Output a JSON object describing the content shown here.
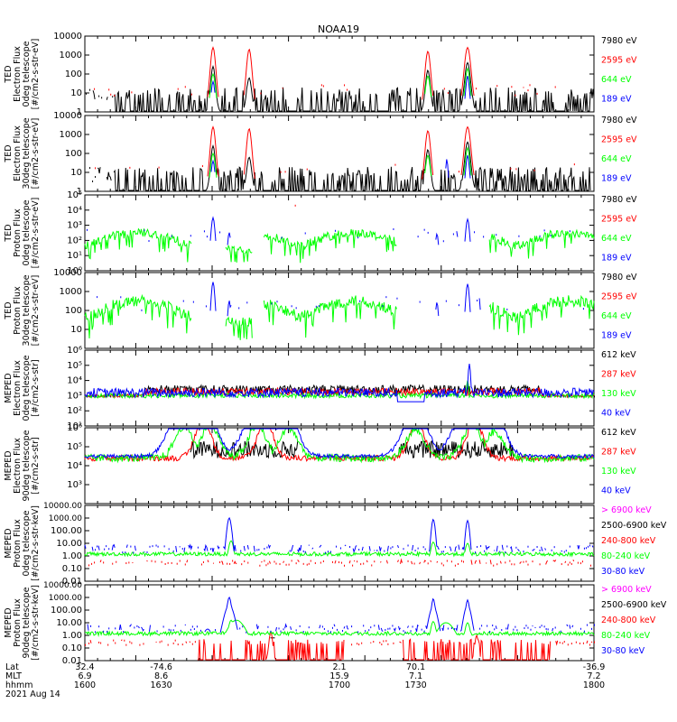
{
  "title": "NOAA19",
  "colors": {
    "black": "#000000",
    "red": "#ff0000",
    "green": "#00ff00",
    "blue": "#0000ff",
    "magenta": "#ff00ff"
  },
  "bottom_axis": {
    "row_labels": [
      "Lat",
      "MLT",
      "hhmm"
    ],
    "columns": [
      {
        "t": 1600,
        "values": [
          "32.4",
          "6.9",
          "1600"
        ]
      },
      {
        "t": 1630,
        "values": [
          "-74.6",
          "8.6",
          "1630"
        ]
      },
      {
        "t": 1700,
        "values": [
          "2.1",
          "15.9",
          "1700"
        ]
      },
      {
        "t": 1730,
        "values": [
          "70.1",
          "7.1",
          "1730"
        ]
      },
      {
        "t": 1800,
        "values": [
          "-36.9",
          "7.2",
          "1800"
        ]
      }
    ],
    "date": "2021 Aug 14"
  },
  "chart_data": [
    {
      "type": "line",
      "ylabel": [
        "TED",
        "Electron Flux",
        "0deg telescope",
        "[#/cm2-s-str-eV]"
      ],
      "ylog": true,
      "ylim": [
        1,
        10000
      ],
      "yticks": [
        1,
        10,
        100,
        1000,
        10000
      ],
      "ytick_labels": [
        "1",
        "10",
        "100",
        "1000",
        "10000"
      ],
      "legend": [
        {
          "label": "7980 eV",
          "color": "black"
        },
        {
          "label": "2595 eV",
          "color": "red"
        },
        {
          "label": "644 eV",
          "color": "green"
        },
        {
          "label": "189 eV",
          "color": "blue"
        }
      ]
    },
    {
      "type": "line",
      "ylabel": [
        "TED",
        "Electron Flux",
        "30deg telescope",
        "[#/cm2-s-str-eV]"
      ],
      "ylog": true,
      "ylim": [
        1,
        10000
      ],
      "yticks": [
        1,
        10,
        100,
        1000,
        10000
      ],
      "ytick_labels": [
        "1",
        "10",
        "100",
        "1000",
        "10000"
      ],
      "legend": [
        {
          "label": "7980 eV",
          "color": "black"
        },
        {
          "label": "2595 eV",
          "color": "red"
        },
        {
          "label": "644 eV",
          "color": "green"
        },
        {
          "label": "189 eV",
          "color": "blue"
        }
      ]
    },
    {
      "type": "line",
      "ylabel": [
        "TED",
        "Proton Flux",
        "0deg telescope",
        "[#/cm2-s-str-eV]"
      ],
      "ylog": true,
      "ylim": [
        1,
        100000
      ],
      "yticks": [
        1,
        10,
        100,
        1000,
        10000,
        100000
      ],
      "ytick_labels": [
        "10⁰",
        "10¹",
        "10²",
        "10³",
        "10⁴",
        "10⁵"
      ],
      "legend": [
        {
          "label": "7980 eV",
          "color": "black"
        },
        {
          "label": "2595 eV",
          "color": "red"
        },
        {
          "label": "644 eV",
          "color": "green"
        },
        {
          "label": "189 eV",
          "color": "blue"
        }
      ]
    },
    {
      "type": "line",
      "ylabel": [
        "TED",
        "Proton Flux",
        "30deg telescope",
        "[#/cm2-s-str-eV]"
      ],
      "ylog": true,
      "ylim": [
        1,
        10000
      ],
      "yticks": [
        10,
        100,
        1000,
        10000
      ],
      "ytick_labels": [
        "10",
        "100",
        "1000",
        "10000"
      ],
      "legend": [
        {
          "label": "7980 eV",
          "color": "black"
        },
        {
          "label": "2595 eV",
          "color": "red"
        },
        {
          "label": "644 eV",
          "color": "green"
        },
        {
          "label": "189 eV",
          "color": "blue"
        }
      ]
    },
    {
      "type": "line",
      "ylabel": [
        "MEPED",
        "Electron Flux",
        "0deg telescope",
        "[#/cm2-s-str]"
      ],
      "ylog": true,
      "ylim": [
        10,
        1000000
      ],
      "yticks": [
        10,
        100,
        1000,
        10000,
        100000,
        1000000
      ],
      "ytick_labels": [
        "10¹",
        "10²",
        "10³",
        "10⁴",
        "10⁵",
        "10⁶"
      ],
      "legend": [
        {
          "label": "612 keV",
          "color": "black"
        },
        {
          "label": "287 keV",
          "color": "red"
        },
        {
          "label": "130 keV",
          "color": "green"
        },
        {
          "label": "40 keV",
          "color": "blue"
        }
      ]
    },
    {
      "type": "line",
      "ylabel": [
        "MEPED",
        "Electron Flux",
        "90deg telescope",
        "[#/cm2-s-str]"
      ],
      "ylog": true,
      "ylim": [
        100,
        1000000
      ],
      "yticks": [
        1000,
        10000,
        100000,
        1000000
      ],
      "ytick_labels": [
        "10³",
        "10⁴",
        "10⁵",
        "10⁶"
      ],
      "legend": [
        {
          "label": "612 keV",
          "color": "black"
        },
        {
          "label": "287 keV",
          "color": "red"
        },
        {
          "label": "130 keV",
          "color": "green"
        },
        {
          "label": "40 keV",
          "color": "blue"
        }
      ]
    },
    {
      "type": "line",
      "ylabel": [
        "MEPED",
        "Proton Flux",
        "0deg telescope",
        "[#/cm2-s-str-keV]"
      ],
      "ylog": true,
      "ylim": [
        0.01,
        10000
      ],
      "yticks": [
        0.01,
        0.1,
        1,
        10,
        100,
        1000,
        10000
      ],
      "ytick_labels": [
        "0.01",
        "0.10",
        "1.00",
        "10.00",
        "100.00",
        "1000.00",
        "10000.00"
      ],
      "legend": [
        {
          "label": "> 6900 keV",
          "color": "magenta"
        },
        {
          "label": "2500-6900 keV",
          "color": "black"
        },
        {
          "label": "240-800 keV",
          "color": "red"
        },
        {
          "label": "80-240 keV",
          "color": "green"
        },
        {
          "label": "30-80 keV",
          "color": "blue"
        }
      ]
    },
    {
      "type": "line",
      "ylabel": [
        "MEPED",
        "Proton Flux",
        "90deg telescope",
        "[#/cm2-s-str-keV]"
      ],
      "ylog": true,
      "ylim": [
        0.01,
        10000
      ],
      "yticks": [
        0.01,
        0.1,
        1,
        10,
        100,
        1000,
        10000
      ],
      "ytick_labels": [
        "0.01",
        "0.10",
        "1.00",
        "10.00",
        "100.00",
        "1000.00",
        "10000.00"
      ],
      "legend": [
        {
          "label": "> 6900 keV",
          "color": "magenta"
        },
        {
          "label": "2500-6900 keV",
          "color": "black"
        },
        {
          "label": "240-800 keV",
          "color": "red"
        },
        {
          "label": "80-240 keV",
          "color": "green"
        },
        {
          "label": "30-80 keV",
          "color": "blue"
        }
      ]
    }
  ]
}
